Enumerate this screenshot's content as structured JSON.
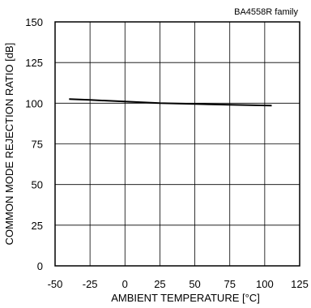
{
  "chart_data": {
    "type": "line",
    "annotation": "BA4558R  family",
    "xlabel": "AMBIENT TEMPERATURE [°C]",
    "ylabel": "COMMON MODE REJECTION RATIO [dB]",
    "xlim": [
      -50,
      125
    ],
    "ylim": [
      0,
      150
    ],
    "x_ticks": [
      -50,
      -25,
      0,
      25,
      50,
      75,
      100,
      125
    ],
    "y_ticks": [
      0,
      25,
      50,
      75,
      100,
      125,
      150
    ],
    "x_tick_labels": [
      "-50",
      "-25",
      "0",
      "25",
      "50",
      "75",
      "100",
      "125"
    ],
    "y_tick_labels": [
      "0",
      "25",
      "50",
      "75",
      "100",
      "125",
      "150"
    ],
    "grid": true,
    "series": [
      {
        "x": [
          -40,
          -25,
          0,
          25,
          50,
          75,
          105
        ],
        "y": [
          102.5,
          102,
          101,
          100,
          99.5,
          99,
          98.5
        ],
        "color": "#000000"
      }
    ]
  }
}
